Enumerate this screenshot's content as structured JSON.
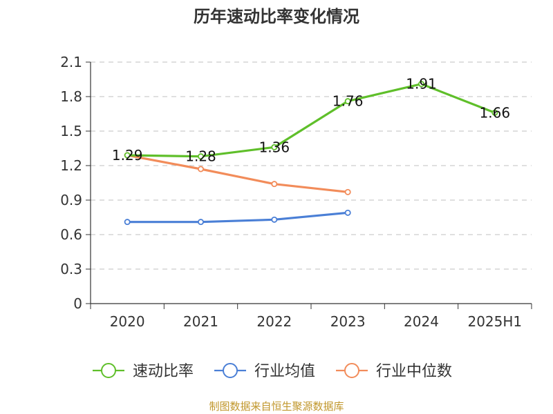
{
  "title": "历年速动比率变化情况",
  "source": "制图数据来自恒生聚源数据库",
  "chart_data": {
    "type": "line",
    "title": "历年速动比率变化情况",
    "categories": [
      "2020",
      "2021",
      "2022",
      "2023",
      "2024",
      "2025H1"
    ],
    "ylim": [
      0,
      2.1
    ],
    "y_ticks": [
      "0",
      "0.3",
      "0.6",
      "0.9",
      "1.2",
      "1.5",
      "1.8",
      "2.1"
    ],
    "grid": true,
    "legend_position": "bottom",
    "series": [
      {
        "name": "速动比率",
        "color": "#5fbf2a",
        "values": [
          1.29,
          1.28,
          1.36,
          1.76,
          1.91,
          1.66
        ],
        "labels": [
          "1.29",
          "1.28",
          "1.36",
          "1.76",
          "1.91",
          "1.66"
        ]
      },
      {
        "name": "行业均值",
        "color": "#4a7fd6",
        "values": [
          0.71,
          0.71,
          0.73,
          0.79,
          null,
          null
        ]
      },
      {
        "name": "行业中位数",
        "color": "#f28c5a",
        "values": [
          1.29,
          1.17,
          1.04,
          0.97,
          null,
          null
        ]
      }
    ]
  }
}
